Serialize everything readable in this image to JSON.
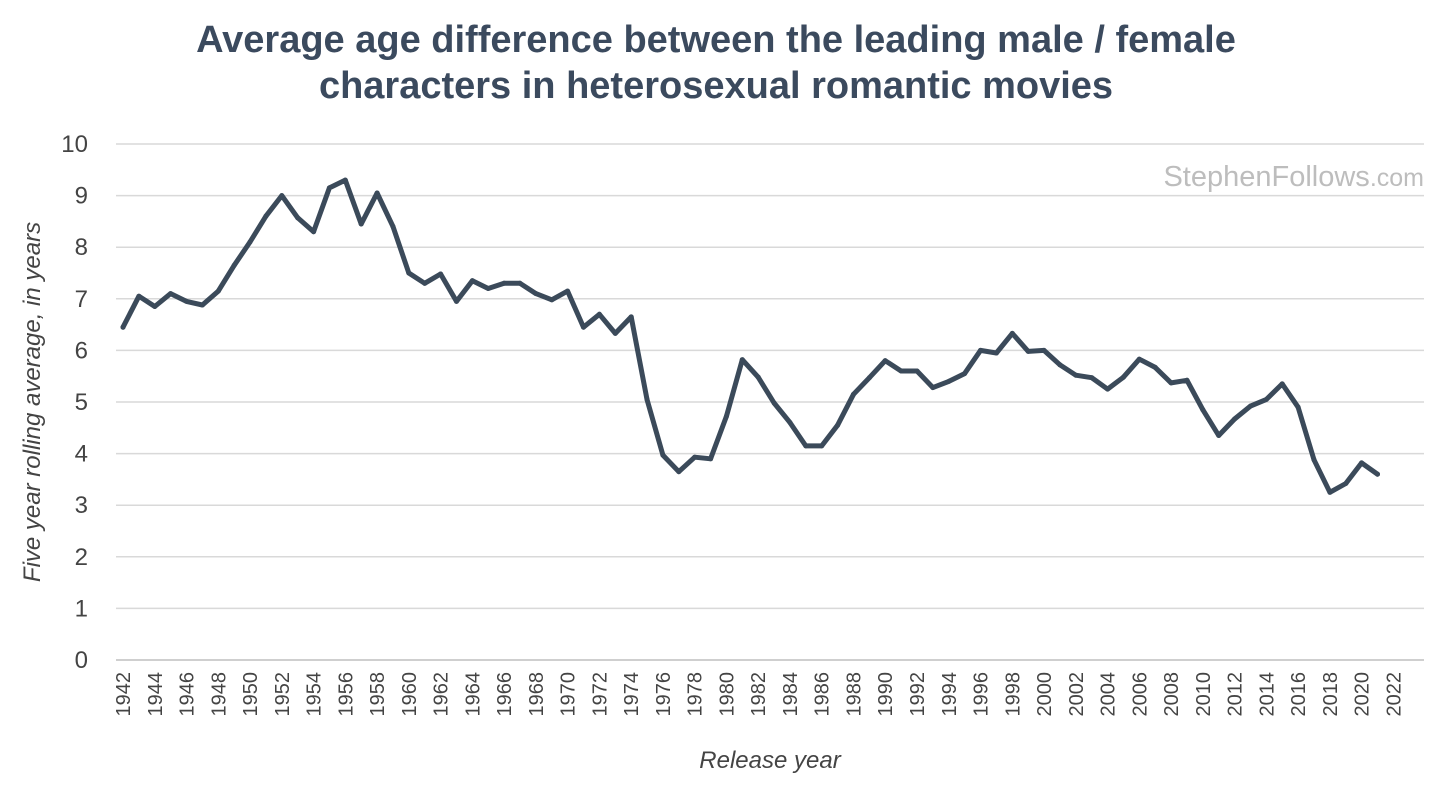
{
  "chart_data": {
    "type": "line",
    "title_lines": [
      "Average age difference between the leading male / female",
      "characters in heterosexual romantic movies"
    ],
    "xlabel": "Release year",
    "ylabel": "Five year rolling average, in years",
    "ylim": [
      0,
      10
    ],
    "yticks": [
      "0",
      "1",
      "2",
      "3",
      "4",
      "5",
      "6",
      "7",
      "8",
      "9",
      "10"
    ],
    "xlim": [
      1942,
      2022
    ],
    "xticks": [
      "1942",
      "1944",
      "1946",
      "1948",
      "1950",
      "1952",
      "1954",
      "1956",
      "1958",
      "1960",
      "1962",
      "1964",
      "1966",
      "1968",
      "1970",
      "1972",
      "1974",
      "1976",
      "1978",
      "1980",
      "1982",
      "1984",
      "1986",
      "1988",
      "1990",
      "1992",
      "1994",
      "1996",
      "1998",
      "2000",
      "2002",
      "2004",
      "2006",
      "2008",
      "2010",
      "2012",
      "2014",
      "2016",
      "2018",
      "2020",
      "2022"
    ],
    "grid": true,
    "line_color": "#3b4a5a",
    "watermark": {
      "main": "StephenFollows",
      "suffix": ".com"
    },
    "x": [
      1942,
      1943,
      1944,
      1945,
      1946,
      1947,
      1948,
      1949,
      1950,
      1951,
      1952,
      1953,
      1954,
      1955,
      1956,
      1957,
      1958,
      1959,
      1960,
      1961,
      1962,
      1963,
      1964,
      1965,
      1966,
      1967,
      1968,
      1969,
      1970,
      1971,
      1972,
      1973,
      1974,
      1975,
      1976,
      1977,
      1978,
      1979,
      1980,
      1981,
      1982,
      1983,
      1984,
      1985,
      1986,
      1987,
      1988,
      1989,
      1990,
      1991,
      1992,
      1993,
      1994,
      1995,
      1996,
      1997,
      1998,
      1999,
      2000,
      2001,
      2002,
      2003,
      2004,
      2005,
      2006,
      2007,
      2008,
      2009,
      2010,
      2011,
      2012,
      2013,
      2014,
      2015,
      2016,
      2017,
      2018,
      2019,
      2020,
      2021
    ],
    "values": [
      6.45,
      7.05,
      6.85,
      7.1,
      6.95,
      6.88,
      7.15,
      7.65,
      8.1,
      8.6,
      9.0,
      8.57,
      8.3,
      9.15,
      9.3,
      8.45,
      9.05,
      8.4,
      7.5,
      7.3,
      7.48,
      6.95,
      7.35,
      7.2,
      7.3,
      7.3,
      7.1,
      6.98,
      7.15,
      6.45,
      6.7,
      6.33,
      6.65,
      5.05,
      3.97,
      3.65,
      3.93,
      3.9,
      4.72,
      5.82,
      5.48,
      4.98,
      4.6,
      4.15,
      4.15,
      4.55,
      5.15,
      5.47,
      5.8,
      5.6,
      5.6,
      5.28,
      5.4,
      5.55,
      6.0,
      5.95,
      6.33,
      5.98,
      6.0,
      5.72,
      5.52,
      5.47,
      5.25,
      5.48,
      5.83,
      5.67,
      5.37,
      5.42,
      4.85,
      4.35,
      4.67,
      4.92,
      5.05,
      5.35,
      4.9,
      3.88,
      3.25,
      3.42,
      3.82,
      3.6
    ]
  }
}
